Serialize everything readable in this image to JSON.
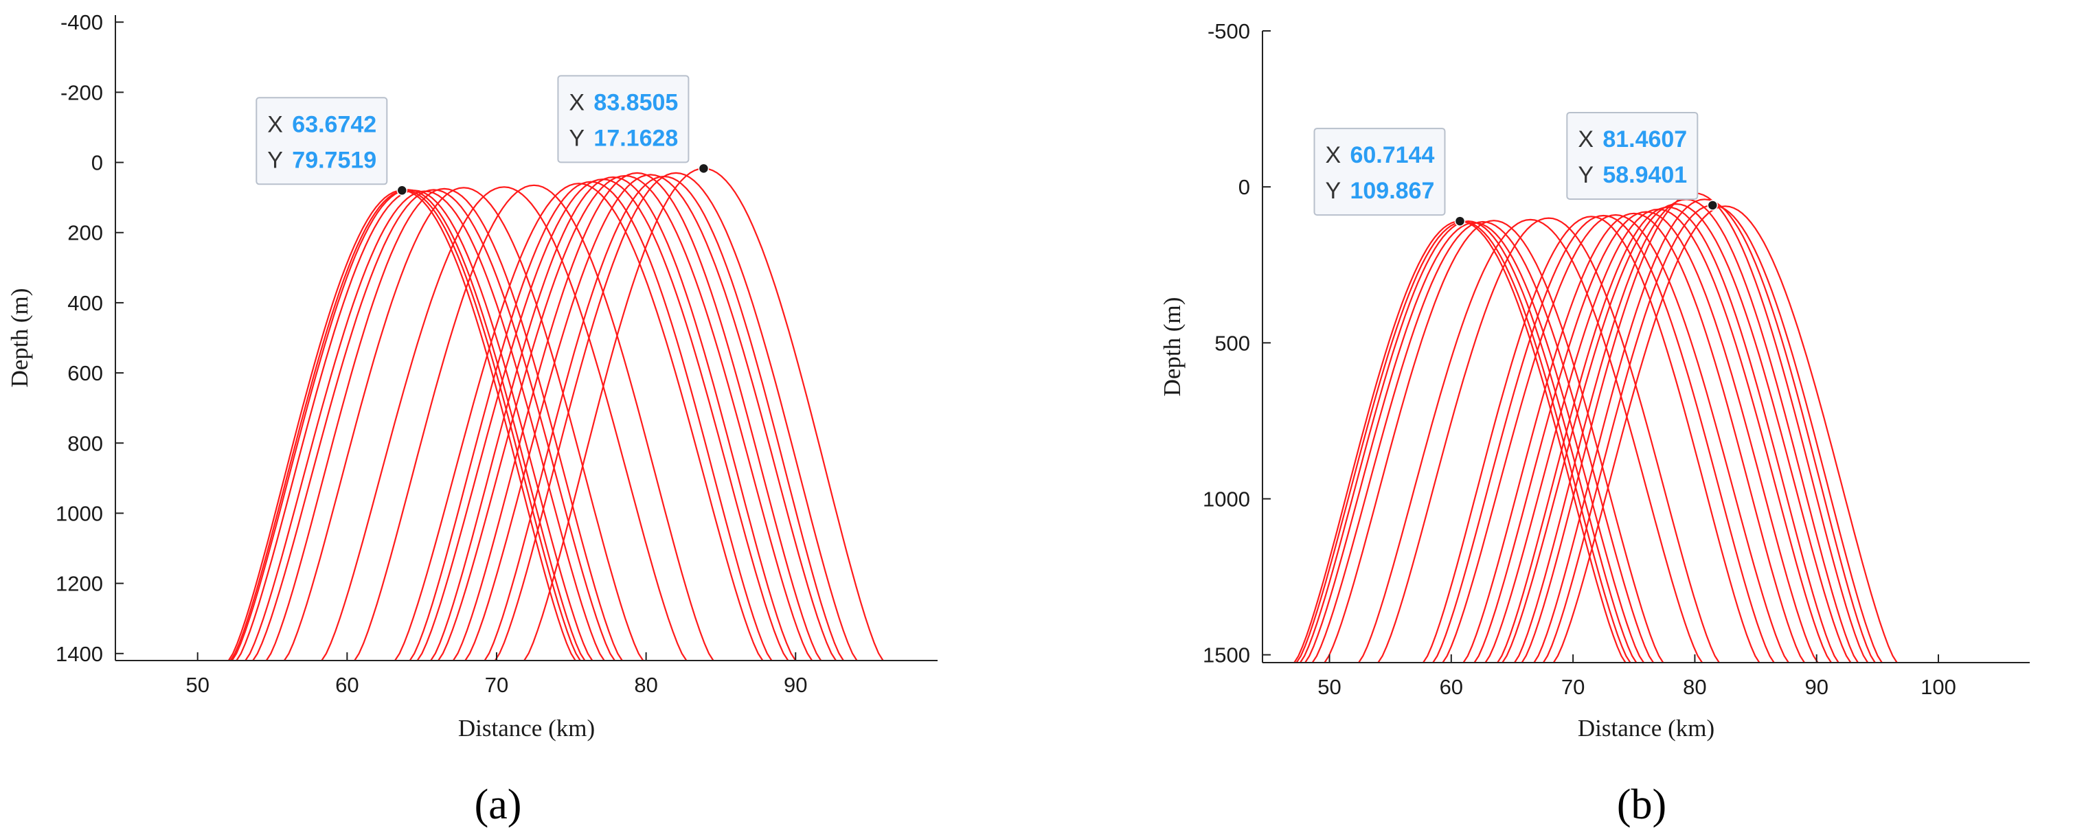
{
  "colors": {
    "ray": "#ff1a1a",
    "tip_value": "#2a9df4",
    "axis": "#222222"
  },
  "chart_data": [
    {
      "type": "line",
      "panel_label": "(a)",
      "xlabel": "Distance (km)",
      "ylabel": "Depth (m)",
      "xlim": [
        44.5,
        99.5
      ],
      "ylim": [
        -420,
        1420
      ],
      "y_reversed": true,
      "x_ticks": [
        50,
        60,
        70,
        80,
        90
      ],
      "y_ticks": [
        -400,
        -200,
        0,
        200,
        400,
        600,
        800,
        1000,
        1200,
        1400
      ],
      "base_depth": 1420,
      "series_note": "",
      "rays": [
        {
          "x_apex": 63.67,
          "y_apex": 79.75,
          "half_width": 11.6
        },
        {
          "x_apex": 63.9,
          "y_apex": 80,
          "half_width": 11.7
        },
        {
          "x_apex": 64.1,
          "y_apex": 78,
          "half_width": 11.8
        },
        {
          "x_apex": 64.5,
          "y_apex": 80,
          "half_width": 11.9
        },
        {
          "x_apex": 65.2,
          "y_apex": 82,
          "half_width": 12.0
        },
        {
          "x_apex": 65.8,
          "y_apex": 78,
          "half_width": 12.1
        },
        {
          "x_apex": 66.5,
          "y_apex": 75,
          "half_width": 11.9
        },
        {
          "x_apex": 67.8,
          "y_apex": 72,
          "half_width": 12.0
        },
        {
          "x_apex": 70.5,
          "y_apex": 70,
          "half_width": 12.2
        },
        {
          "x_apex": 72.5,
          "y_apex": 65,
          "half_width": 12.0
        },
        {
          "x_apex": 75.5,
          "y_apex": 60,
          "half_width": 12.3
        },
        {
          "x_apex": 76.3,
          "y_apex": 55,
          "half_width": 12.1
        },
        {
          "x_apex": 77.1,
          "y_apex": 48,
          "half_width": 12.4
        },
        {
          "x_apex": 77.8,
          "y_apex": 42,
          "half_width": 12.2
        },
        {
          "x_apex": 78.6,
          "y_apex": 38,
          "half_width": 12.5
        },
        {
          "x_apex": 79.4,
          "y_apex": 30,
          "half_width": 12.3
        },
        {
          "x_apex": 80.3,
          "y_apex": 35,
          "half_width": 12.4
        },
        {
          "x_apex": 81.2,
          "y_apex": 40,
          "half_width": 12.0
        },
        {
          "x_apex": 82.0,
          "y_apex": 30,
          "half_width": 12.1
        },
        {
          "x_apex": 83.85,
          "y_apex": 17.16,
          "half_width": 12.0
        }
      ],
      "datatips": [
        {
          "x_label": "X",
          "y_label": "Y",
          "x_value": "63.6742",
          "y_value": "79.7519",
          "x": 63.6742,
          "y": 79.7519
        },
        {
          "x_label": "X",
          "y_label": "Y",
          "x_value": "83.8505",
          "y_value": "17.1628",
          "x": 83.8505,
          "y": 17.1628
        }
      ]
    },
    {
      "type": "line",
      "panel_label": "(b)",
      "xlabel": "Distance (km)",
      "ylabel": "Depth (m)",
      "xlim": [
        44.5,
        107.5
      ],
      "ylim": [
        -500,
        1525
      ],
      "y_reversed": true,
      "x_ticks": [
        50,
        60,
        70,
        80,
        90,
        100
      ],
      "y_ticks": [
        -500,
        0,
        500,
        1000,
        1500
      ],
      "base_depth": 1525,
      "series_note": "",
      "rays": [
        {
          "x_apex": 60.71,
          "y_apex": 109.87,
          "half_width": 13.6
        },
        {
          "x_apex": 61.0,
          "y_apex": 112,
          "half_width": 13.7
        },
        {
          "x_apex": 61.4,
          "y_apex": 110,
          "half_width": 13.8
        },
        {
          "x_apex": 61.9,
          "y_apex": 115,
          "half_width": 13.9
        },
        {
          "x_apex": 62.6,
          "y_apex": 112,
          "half_width": 14.0
        },
        {
          "x_apex": 63.5,
          "y_apex": 108,
          "half_width": 13.9
        },
        {
          "x_apex": 66.5,
          "y_apex": 105,
          "half_width": 14.1
        },
        {
          "x_apex": 68.0,
          "y_apex": 100,
          "half_width": 14.0
        },
        {
          "x_apex": 71.5,
          "y_apex": 95,
          "half_width": 13.8
        },
        {
          "x_apex": 72.5,
          "y_apex": 92,
          "half_width": 14.0
        },
        {
          "x_apex": 73.5,
          "y_apex": 90,
          "half_width": 14.2
        },
        {
          "x_apex": 75.0,
          "y_apex": 85,
          "half_width": 14.0
        },
        {
          "x_apex": 76.0,
          "y_apex": 80,
          "half_width": 14.1
        },
        {
          "x_apex": 77.0,
          "y_apex": 72,
          "half_width": 14.2
        },
        {
          "x_apex": 77.8,
          "y_apex": 65,
          "half_width": 14.0
        },
        {
          "x_apex": 78.5,
          "y_apex": 55,
          "half_width": 14.3
        },
        {
          "x_apex": 79.3,
          "y_apex": 40,
          "half_width": 14.1
        },
        {
          "x_apex": 80.0,
          "y_apex": 20,
          "half_width": 14.2
        },
        {
          "x_apex": 80.8,
          "y_apex": 40,
          "half_width": 14.0
        },
        {
          "x_apex": 81.46,
          "y_apex": 58.94,
          "half_width": 13.9
        },
        {
          "x_apex": 82.5,
          "y_apex": 62,
          "half_width": 14.1
        }
      ],
      "datatips": [
        {
          "x_label": "X",
          "y_label": "Y",
          "x_value": "60.7144",
          "y_value": "109.867",
          "x": 60.7144,
          "y": 109.867
        },
        {
          "x_label": "X",
          "y_label": "Y",
          "x_value": "81.4607",
          "y_value": "58.9401",
          "x": 81.4607,
          "y": 58.9401
        }
      ]
    }
  ]
}
